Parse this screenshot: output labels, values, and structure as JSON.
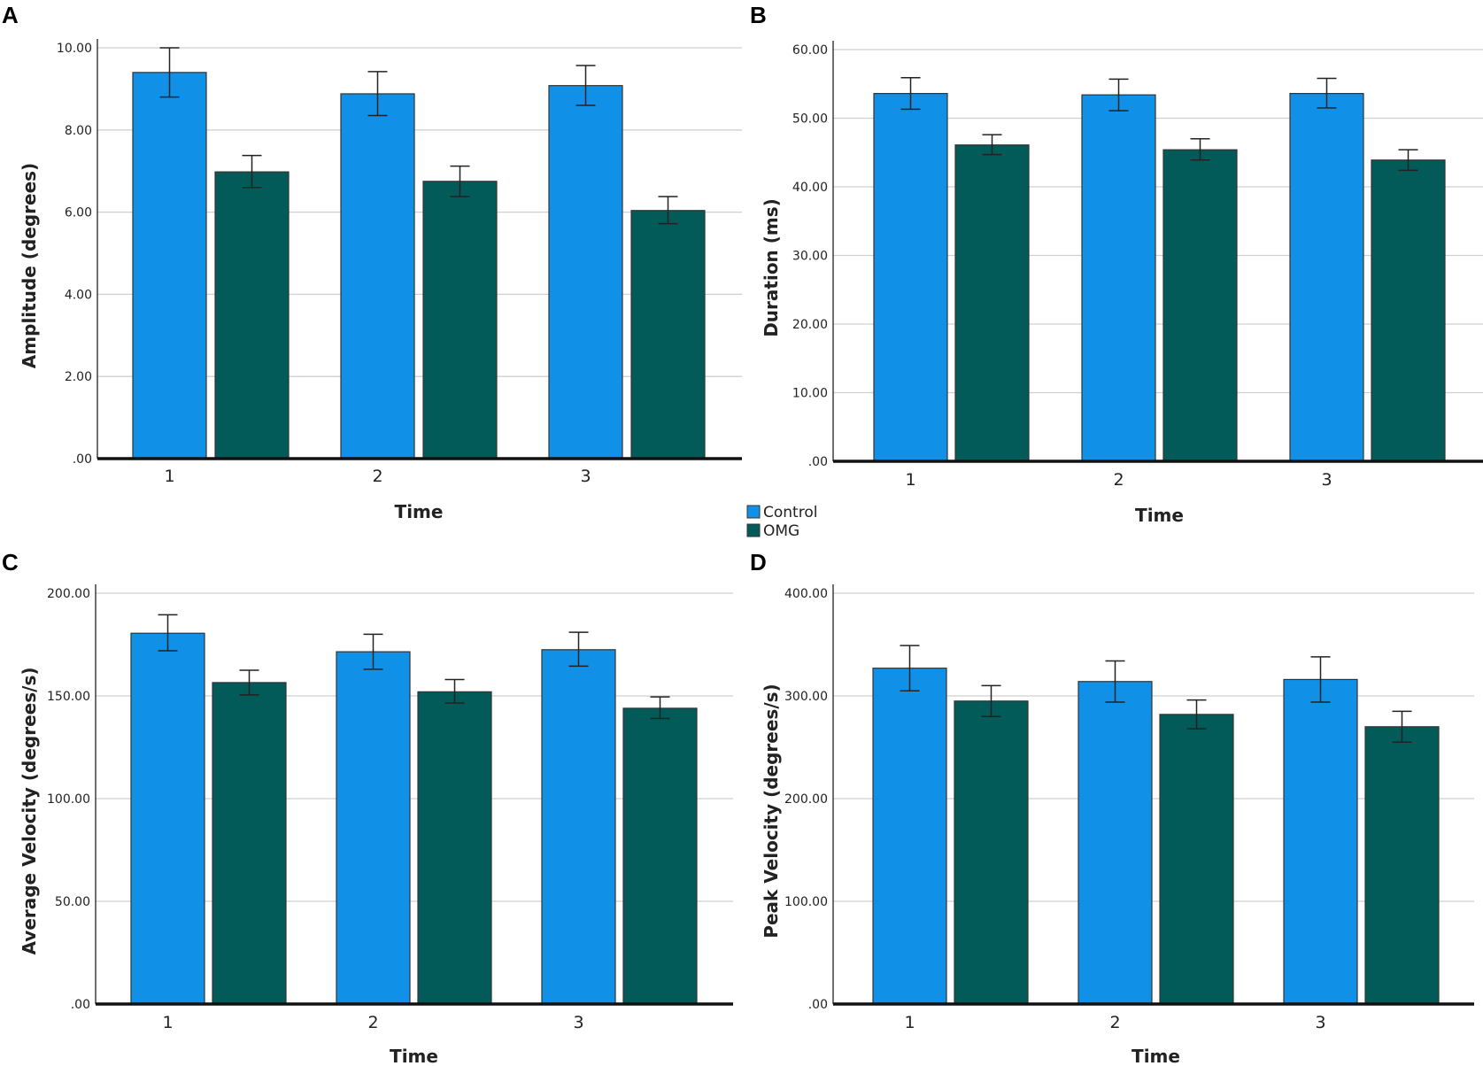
{
  "series_colors": {
    "Control": "#1190e8",
    "OMG": "#025a59"
  },
  "legend": {
    "items": [
      {
        "name": "Control",
        "color": "#1190e8"
      },
      {
        "name": "OMG",
        "color": "#025a59"
      }
    ]
  },
  "chart_data": [
    {
      "panel": "A",
      "type": "bar",
      "title": "",
      "xlabel": "Time",
      "ylabel": "Amplitude (degrees)",
      "categories": [
        "1",
        "2",
        "3"
      ],
      "ylim": [
        0,
        10
      ],
      "yticks": [
        0,
        2,
        4,
        6,
        8,
        10
      ],
      "ytick_labels": [
        ".00",
        "2.00",
        "4.00",
        "6.00",
        "8.00",
        "10.00"
      ],
      "series": [
        {
          "name": "Control",
          "values": [
            9.4,
            8.88,
            9.08
          ],
          "err_low": [
            8.8,
            8.35,
            8.6
          ],
          "err_high": [
            10.0,
            9.42,
            9.57
          ]
        },
        {
          "name": "OMG",
          "values": [
            6.98,
            6.75,
            6.04
          ],
          "err_low": [
            6.6,
            6.38,
            5.72
          ],
          "err_high": [
            7.38,
            7.12,
            6.38
          ]
        }
      ]
    },
    {
      "panel": "B",
      "type": "bar",
      "title": "",
      "xlabel": "Time",
      "ylabel": "Duration (ms)",
      "categories": [
        "1",
        "2",
        "3"
      ],
      "ylim": [
        0,
        60
      ],
      "yticks": [
        0,
        10,
        20,
        30,
        40,
        50,
        60
      ],
      "ytick_labels": [
        ".00",
        "10.00",
        "20.00",
        "30.00",
        "40.00",
        "50.00",
        "60.00"
      ],
      "series": [
        {
          "name": "Control",
          "values": [
            53.6,
            53.4,
            53.6
          ],
          "err_low": [
            51.3,
            51.1,
            51.5
          ],
          "err_high": [
            55.9,
            55.7,
            55.8
          ]
        },
        {
          "name": "OMG",
          "values": [
            46.1,
            45.4,
            43.9
          ],
          "err_low": [
            44.7,
            43.9,
            42.4
          ],
          "err_high": [
            47.6,
            47.0,
            45.4
          ]
        }
      ]
    },
    {
      "panel": "C",
      "type": "bar",
      "title": "",
      "xlabel": "Time",
      "ylabel": "Average Velocity (degrees/s)",
      "categories": [
        "1",
        "2",
        "3"
      ],
      "ylim": [
        0,
        200
      ],
      "yticks": [
        0,
        50,
        100,
        150,
        200
      ],
      "ytick_labels": [
        ".00",
        "50.00",
        "100.00",
        "150.00",
        "200.00"
      ],
      "series": [
        {
          "name": "Control",
          "values": [
            180.5,
            171.5,
            172.5
          ],
          "err_low": [
            172.0,
            163.0,
            164.5
          ],
          "err_high": [
            189.5,
            180.0,
            181.0
          ]
        },
        {
          "name": "OMG",
          "values": [
            156.5,
            152.0,
            144.0
          ],
          "err_low": [
            150.5,
            146.5,
            139.0
          ],
          "err_high": [
            162.5,
            158.0,
            149.5
          ]
        }
      ]
    },
    {
      "panel": "D",
      "type": "bar",
      "title": "",
      "xlabel": "Time",
      "ylabel": "Peak Velocity (degrees/s)",
      "categories": [
        "1",
        "2",
        "3"
      ],
      "ylim": [
        0,
        400
      ],
      "yticks": [
        0,
        100,
        200,
        300,
        400
      ],
      "ytick_labels": [
        ".00",
        "100.00",
        "200.00",
        "300.00",
        "400.00"
      ],
      "series": [
        {
          "name": "Control",
          "values": [
            327,
            314,
            316
          ],
          "err_low": [
            305,
            294,
            294
          ],
          "err_high": [
            349,
            334,
            338
          ]
        },
        {
          "name": "OMG",
          "values": [
            295,
            282,
            270
          ],
          "err_low": [
            280,
            268,
            255
          ],
          "err_high": [
            310,
            296,
            285
          ]
        }
      ]
    }
  ]
}
